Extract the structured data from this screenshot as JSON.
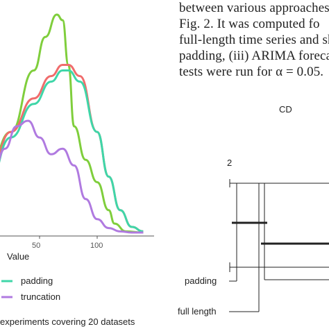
{
  "left_figure": {
    "xlabel": "Value",
    "x_ticks": [
      "50",
      "100"
    ],
    "legend": {
      "items": [
        {
          "label": "padding",
          "color": "#3fd6a8"
        },
        {
          "label": "truncation",
          "color": "#b07ae0"
        }
      ]
    },
    "caption": "experiments covering 20 datasets"
  },
  "chart_data": {
    "type": "line",
    "title": "",
    "xlabel": "Value",
    "ylabel": "",
    "x_ticks": [
      50,
      100
    ],
    "series": [
      {
        "color": "#7fce3c",
        "x": [
          -5,
          5,
          25,
          45,
          55,
          65,
          70,
          75,
          80,
          90,
          100,
          110,
          115,
          125,
          140
        ],
        "y": [
          0.35,
          0.55,
          0.9,
          1.45,
          1.75,
          1.95,
          1.9,
          1.5,
          0.95,
          0.65,
          0.45,
          0.2,
          0.08,
          0.01,
          0.0
        ]
      },
      {
        "color": "#f06c6c",
        "x": [
          -5,
          5,
          25,
          45,
          60,
          70,
          75,
          85,
          100,
          110,
          120,
          130,
          140
        ],
        "y": [
          0.25,
          0.45,
          0.9,
          1.2,
          1.4,
          1.5,
          1.5,
          1.4,
          0.9,
          0.5,
          0.2,
          0.05,
          0.01
        ]
      },
      {
        "color": "#3fd6a8",
        "x": [
          -5,
          5,
          25,
          45,
          60,
          70,
          75,
          85,
          100,
          110,
          120,
          130,
          140
        ],
        "y": [
          0.25,
          0.42,
          0.85,
          1.15,
          1.35,
          1.45,
          1.45,
          1.35,
          0.9,
          0.5,
          0.2,
          0.05,
          0.01
        ]
      },
      {
        "name": "truncation",
        "color": "#b07ae0",
        "x": [
          -5,
          0,
          10,
          20,
          30,
          40,
          50,
          60,
          70,
          80,
          90,
          100,
          110,
          120,
          130,
          140
        ],
        "y": [
          0.4,
          0.45,
          0.55,
          0.75,
          0.95,
          1.0,
          0.85,
          0.7,
          0.75,
          0.6,
          0.3,
          0.12,
          0.04,
          0.01,
          0.0,
          0.0
        ]
      }
    ]
  },
  "paragraph": {
    "lines": [
      "between various approaches",
      "Fig. 2. It was computed fo",
      "full-length time series and sh",
      "padding, (iii) ARIMA foreca",
      "tests were run for α = 0.05."
    ]
  },
  "cd_diagram": {
    "cd_label": "CD",
    "axis_label": "2",
    "methods": [
      "padding",
      "full length"
    ]
  }
}
